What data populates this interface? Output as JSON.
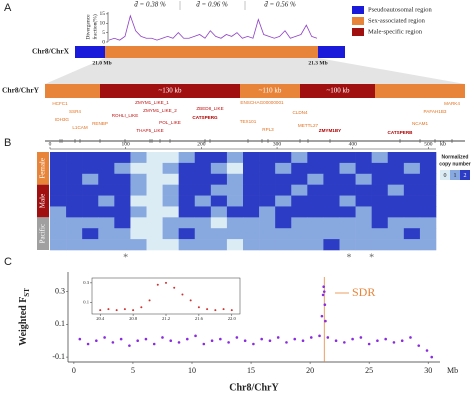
{
  "panel_labels": [
    "A",
    "B",
    "C"
  ],
  "diagram": {
    "chrX_label": "Chr8/ChrX",
    "chrY_label": "Chr8/ChrY",
    "chrX_ticks": [
      "21.0 Mb",
      "21.3 Mb"
    ],
    "chrY_segments": [
      "~130 kb",
      "~110 kb",
      "~100 kb"
    ],
    "legend": [
      {
        "name": "Pseudoautosomal region",
        "color": "#1a1adb"
      },
      {
        "name": "Sex-associated region",
        "color": "#e8843a"
      },
      {
        "name": "Male-specific region",
        "color": "#a01010"
      }
    ],
    "genes": [
      {
        "label": "HCFC1",
        "color": "#e07020",
        "bold": false
      },
      {
        "label": "SSR4",
        "color": "#e07020",
        "bold": false
      },
      {
        "label": "IDH3G",
        "color": "#e07020",
        "bold": false
      },
      {
        "label": "L1CAM",
        "color": "#e07020",
        "bold": false
      },
      {
        "label": "RENBP",
        "color": "#e07020",
        "bold": false
      },
      {
        "label": "ZMYM1_LIKE_1",
        "color": "#c01010",
        "bold": false
      },
      {
        "label": "ZMYM1_LIKE_2",
        "color": "#c01010",
        "bold": false
      },
      {
        "label": "ROHLI_LIKE",
        "color": "#c01010",
        "bold": false
      },
      {
        "label": "POL_LIKE",
        "color": "#c01010",
        "bold": false
      },
      {
        "label": "THAP5_LIKE",
        "color": "#c01010",
        "bold": false
      },
      {
        "label": "CATSPERG",
        "color": "#b00000",
        "bold": true
      },
      {
        "label": "ZBED8_LIKE",
        "color": "#c01010",
        "bold": false
      },
      {
        "label": "ENSCHAG00000001",
        "color": "#e07020",
        "bold": false
      },
      {
        "label": "TEX101",
        "color": "#e07020",
        "bold": false
      },
      {
        "label": "RPL3",
        "color": "#e07020",
        "bold": false
      },
      {
        "label": "CLDN4",
        "color": "#e07020",
        "bold": false
      },
      {
        "label": "METTL27",
        "color": "#e07020",
        "bold": false
      },
      {
        "label": "ZMYM1BY",
        "color": "#b00000",
        "bold": true
      },
      {
        "label": "CATSPERB",
        "color": "#b00000",
        "bold": true
      },
      {
        "label": "PAFAH1B3",
        "color": "#e07020",
        "bold": false
      },
      {
        "label": "MARK4",
        "color": "#e07020",
        "bold": false
      },
      {
        "label": "NCAM1",
        "color": "#e07020",
        "bold": false
      }
    ]
  },
  "chart_data": [
    {
      "type": "area",
      "y_label": [
        "Divergence",
        "fraction(%)"
      ],
      "annotations": [
        "d̄ = 0.38 %",
        "d̄ = 0.96 %",
        "d̄ = 0.56 %"
      ],
      "values": [
        1,
        2,
        1,
        3,
        14,
        6,
        3,
        2,
        2,
        1,
        2,
        3,
        2,
        5,
        2,
        2,
        3,
        4,
        2,
        6,
        3,
        2,
        4,
        3,
        5,
        2,
        3,
        2,
        12,
        4,
        3,
        2,
        3,
        6,
        2,
        3,
        4,
        9,
        3,
        2
      ],
      "ylim": [
        0,
        16
      ],
      "yticks": [
        0,
        5,
        10,
        15
      ],
      "color": "#9040c8"
    },
    {
      "type": "heatmap",
      "x_unit": "kb",
      "xlim": [
        0,
        510
      ],
      "xticks": [
        0,
        100,
        200,
        300,
        400,
        500
      ],
      "groups": [
        {
          "name": "Female",
          "color": "#e8843a",
          "rows": [
            [
              2,
              2,
              2,
              2,
              2,
              1,
              0,
              0,
              1,
              2,
              2,
              1,
              2,
              2,
              2,
              1,
              2,
              2,
              2,
              2,
              1,
              2,
              2,
              2
            ],
            [
              2,
              2,
              2,
              2,
              1,
              0,
              0,
              1,
              2,
              2,
              1,
              0,
              2,
              2,
              1,
              2,
              2,
              2,
              1,
              2,
              2,
              2,
              1,
              2
            ],
            [
              2,
              2,
              1,
              2,
              2,
              1,
              0,
              0,
              2,
              2,
              2,
              1,
              2,
              2,
              2,
              2,
              1,
              2,
              2,
              1,
              2,
              2,
              2,
              2
            ]
          ]
        },
        {
          "name": "Male",
          "color": "#a01010",
          "rows": [
            [
              2,
              2,
              2,
              2,
              2,
              1,
              0,
              1,
              2,
              2,
              1,
              1,
              2,
              2,
              2,
              1,
              2,
              2,
              2,
              2,
              2,
              1,
              2,
              2
            ],
            [
              2,
              2,
              2,
              1,
              2,
              0,
              0,
              1,
              2,
              1,
              2,
              1,
              2,
              2,
              1,
              2,
              2,
              2,
              1,
              2,
              2,
              2,
              2,
              2
            ],
            [
              1,
              2,
              2,
              2,
              2,
              1,
              0,
              0,
              2,
              2,
              1,
              2,
              2,
              1,
              2,
              2,
              2,
              2,
              2,
              1,
              2,
              2,
              2,
              2
            ]
          ]
        },
        {
          "name": "Pacific",
          "color": "#a0a0a0",
          "rows": [
            [
              1,
              1,
              1,
              1,
              2,
              0,
              0,
              1,
              1,
              1,
              0,
              1,
              1,
              1,
              2,
              1,
              1,
              1,
              1,
              1,
              2,
              1,
              1,
              1
            ],
            [
              1,
              1,
              2,
              1,
              1,
              0,
              0,
              1,
              2,
              1,
              1,
              1,
              1,
              1,
              1,
              1,
              1,
              1,
              1,
              1,
              1,
              1,
              2,
              1
            ],
            [
              1,
              1,
              1,
              1,
              1,
              1,
              0,
              0,
              1,
              1,
              1,
              0,
              1,
              1,
              1,
              1,
              1,
              2,
              1,
              1,
              1,
              1,
              1,
              1
            ]
          ]
        }
      ],
      "colorbar": {
        "title": [
          "Normalized",
          "copy number"
        ],
        "ticks": [
          0,
          1,
          2
        ],
        "colors": [
          "#dcecf4",
          "#88a8e0",
          "#2c3cc4"
        ]
      },
      "asterisk": "*",
      "asterisk_x": [
        100,
        395,
        425
      ]
    },
    {
      "type": "scatter",
      "x_label": "Chr8/ChrY",
      "x_unit": "Mb",
      "y_label": "Weighted F",
      "y_label_sub": "ST",
      "annotation": "SDR",
      "sdr_x": 21.2,
      "x": [
        0.5,
        1.2,
        1.9,
        2.6,
        3.3,
        4.0,
        4.7,
        5.4,
        6.1,
        6.8,
        7.5,
        8.2,
        8.9,
        9.6,
        10.3,
        11.0,
        11.7,
        12.4,
        13.1,
        13.8,
        14.5,
        15.2,
        15.9,
        16.6,
        17.3,
        18.0,
        18.7,
        19.4,
        20.1,
        20.8,
        21.0,
        21.1,
        21.15,
        21.2,
        21.25,
        21.3,
        21.5,
        22.2,
        22.9,
        23.6,
        24.3,
        25.0,
        25.7,
        26.4,
        27.1,
        27.8,
        28.5,
        29.2,
        29.9,
        30.3
      ],
      "values": [
        0.01,
        -0.02,
        0.0,
        0.02,
        -0.01,
        0.01,
        -0.03,
        0.0,
        0.01,
        -0.02,
        0.02,
        0.0,
        -0.01,
        0.01,
        0.03,
        -0.02,
        0.0,
        0.01,
        -0.01,
        0.02,
        0.0,
        -0.02,
        0.01,
        0.0,
        0.02,
        -0.01,
        0.01,
        0.0,
        0.02,
        0.03,
        0.15,
        0.28,
        0.33,
        0.3,
        0.22,
        0.12,
        0.02,
        0.0,
        -0.01,
        0.01,
        0.02,
        -0.02,
        0.0,
        0.01,
        -0.01,
        0.0,
        0.02,
        -0.03,
        -0.06,
        -0.1
      ],
      "xlim": [
        -0.5,
        31
      ],
      "xticks": [
        0,
        5,
        10,
        15,
        20,
        25,
        30
      ],
      "ylim": [
        -0.13,
        0.42
      ],
      "yticks": [
        -0.1,
        0.1,
        0.3
      ],
      "color": "#8a2be2",
      "line_color": "#e8843a"
    },
    {
      "type": "scatter",
      "x": [
        20.4,
        20.5,
        20.6,
        20.7,
        20.8,
        20.9,
        21.0,
        21.1,
        21.2,
        21.3,
        21.4,
        21.5,
        21.6,
        21.7,
        21.8,
        21.9,
        22.0
      ],
      "values": [
        0.02,
        0.03,
        0.02,
        0.03,
        0.02,
        0.05,
        0.12,
        0.28,
        0.3,
        0.25,
        0.18,
        0.12,
        0.05,
        0.03,
        0.02,
        0.03,
        0.02
      ],
      "xlim": [
        20.3,
        22.1
      ],
      "xticks": [
        20.4,
        20.8,
        21.2,
        21.6,
        {
          "value": 22,
          "label": "22.0"
        }
      ],
      "ylim": [
        -0.02,
        0.35
      ],
      "yticks": [
        0.1,
        0.3
      ],
      "color": "#d03030"
    }
  ]
}
